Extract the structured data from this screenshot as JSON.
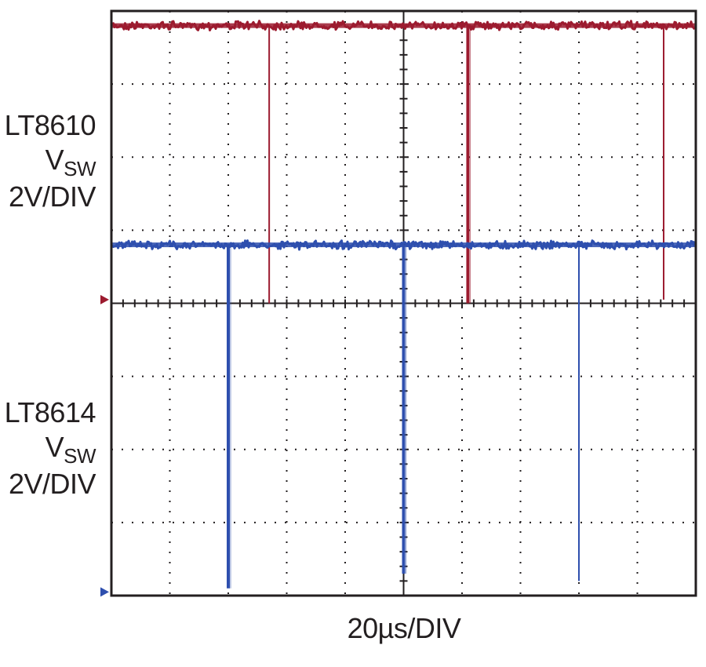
{
  "colors": {
    "top_trace": "#9c1b2f",
    "bottom_trace": "#2e4fae",
    "grid": "#231f20",
    "frame": "#231f20"
  },
  "labels": {
    "top": {
      "part": "LT8610",
      "signal_main": "V",
      "signal_sub": "SW",
      "scale": "2V/DIV"
    },
    "bottom": {
      "part": "LT8614",
      "signal_main": "V",
      "signal_sub": "SW",
      "scale": "2V/DIV"
    },
    "timebase": "20µs/DIV"
  },
  "chart_data": {
    "type": "line",
    "grid": true,
    "x_divisions": 10,
    "y_divisions": 8,
    "xlim_div": [
      0,
      10
    ],
    "series": [
      {
        "name": "LT8610 VSW",
        "ground_div": 0.05,
        "high_div": 3.8,
        "pulses": [
          {
            "t_div": 2.7,
            "low_div": 0.0,
            "width": "thin"
          },
          {
            "t_div": 6.1,
            "low_div": 0.0,
            "width": "thick"
          },
          {
            "t_div": 9.45,
            "low_div": 0.05,
            "width": "thin"
          }
        ]
      },
      {
        "name": "LT8614 VSW",
        "ground_div": 0.05,
        "high_div": 4.8,
        "pulses": [
          {
            "t_div": 2.0,
            "low_div": 0.1,
            "width": "thick"
          },
          {
            "t_div": 5.0,
            "low_div": 0.3,
            "width": "thick"
          },
          {
            "t_div": 8.0,
            "low_div": 0.2,
            "width": "thin"
          }
        ]
      }
    ]
  }
}
